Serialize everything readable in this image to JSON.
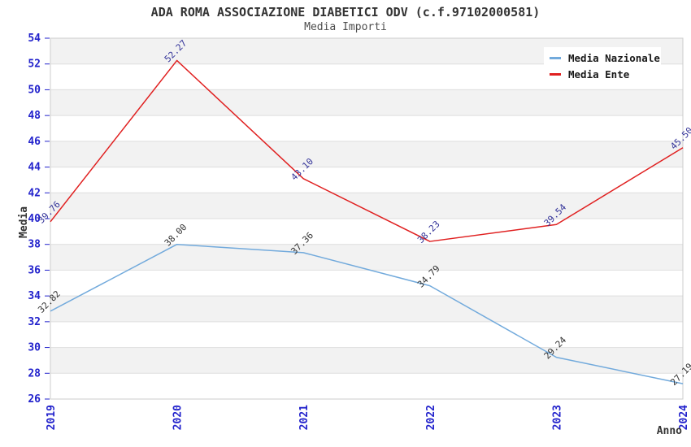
{
  "header": {
    "title": "ADA ROMA ASSOCIAZIONE DIABETICI ODV (c.f.97102000581)",
    "subtitle": "Media Importi"
  },
  "chart_data": {
    "type": "line",
    "x": [
      "2019",
      "2020",
      "2021",
      "2022",
      "2023",
      "2024"
    ],
    "xlabel": "Anno",
    "ylabel": "Media",
    "ylim": [
      26,
      54
    ],
    "yticks": [
      54,
      52,
      50,
      48,
      46,
      44,
      42,
      40,
      38,
      36,
      34,
      32,
      30,
      28,
      26
    ],
    "grid": true,
    "banded_background": true,
    "legend_position": "top-right",
    "series": [
      {
        "name": "Media Nazionale",
        "color": "#72AADC",
        "label_color": "#333333",
        "values": [
          32.82,
          38.0,
          37.36,
          34.79,
          29.24,
          27.19
        ],
        "labels": [
          "32.82",
          "38.00",
          "37.36",
          "34.79",
          "29.24",
          "27.19"
        ]
      },
      {
        "name": "Media Ente",
        "color": "#E02020",
        "label_color": "#333399",
        "values": [
          39.76,
          52.27,
          43.1,
          38.23,
          39.54,
          45.5
        ],
        "labels": [
          "39.76",
          "52.27",
          "43.10",
          "38.23",
          "39.54",
          "45.50"
        ]
      }
    ]
  },
  "colors": {
    "tick_label": "#2222CC",
    "band_gray": "#F2F2F2",
    "band_white": "#FFFFFF",
    "grid_line": "#DEDEDE",
    "plot_border": "#CCCCCC",
    "axis_title": "#333333",
    "legend_text": "#1A1A1A",
    "legend_bg": "#FFFFFF"
  }
}
